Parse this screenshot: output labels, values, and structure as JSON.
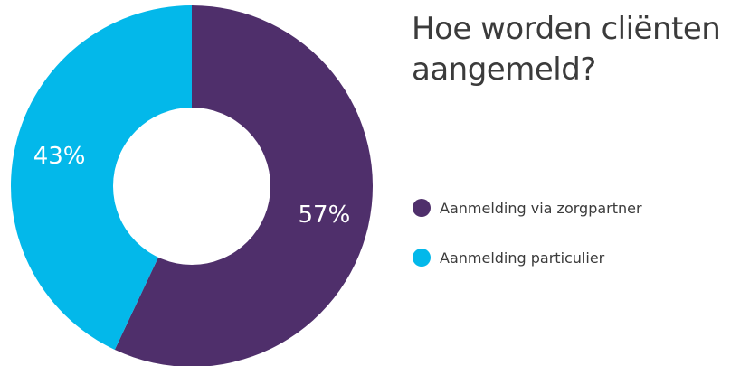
{
  "chart_data": {
    "type": "pie",
    "donut": true,
    "title": "Hoe worden cliënten aangemeld?",
    "series": [
      {
        "name": "Aanmelding via zorgpartner",
        "value": 57,
        "label": "57%",
        "color": "#4f2f6b"
      },
      {
        "name": "Aanmelding particulier",
        "value": 43,
        "label": "43%",
        "color": "#03b8ea"
      }
    ],
    "legend_position": "right"
  }
}
